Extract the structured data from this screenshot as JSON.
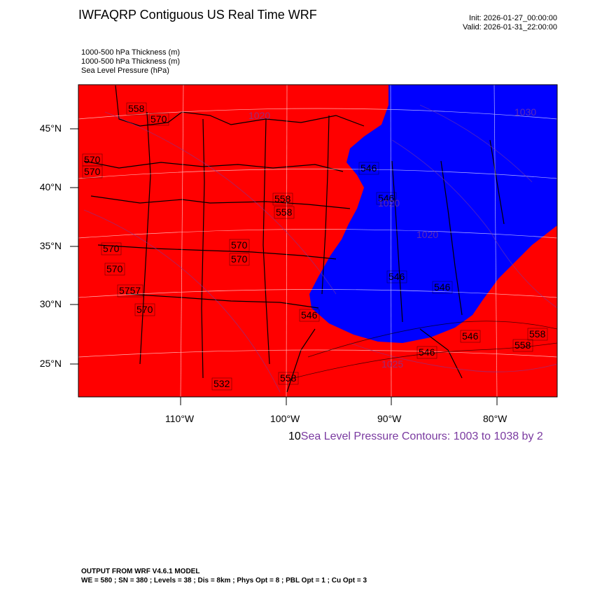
{
  "title": "IWFAQRP Contiguous US Real Time WRF",
  "init": "Init: 2026-01-27_00:00:00",
  "valid": "Valid: 2026-01-31_22:00:00",
  "fields": [
    "1000-500 hPa Thickness   (m)",
    "1000-500 hPa Thickness   (m)",
    "Sea Level Pressure   (hPa)"
  ],
  "lat_labels": [
    "45°N",
    "40°N",
    "35°N",
    "30°N",
    "25°N"
  ],
  "lon_labels": [
    "110°W",
    "100°W",
    "90°W",
    "80°W"
  ],
  "contour_note": {
    "lead": "10",
    "text": "Sea Level Pressure Contours: 1003 to 1038 by 2"
  },
  "thickness_labels": [
    "570",
    "570",
    "570",
    "570",
    "570",
    "570",
    "5757",
    "570",
    "570",
    "558",
    "558",
    "546",
    "546",
    "546",
    "546",
    "546",
    "546",
    "558",
    "558",
    "546",
    "532",
    "558",
    "558"
  ],
  "pressure_labels": [
    "1020",
    "1030",
    "1020",
    "1020",
    "1025"
  ],
  "colors": {
    "warm": "#ff0000",
    "cold": "#0000ff",
    "borders": "#000000",
    "grid": "#ffffff",
    "pressure": "#7a3aa0"
  },
  "footer": {
    "line1": "OUTPUT FROM WRF V4.6.1 MODEL",
    "line2": "WE = 580 ; SN = 380 ; Levels = 38 ; Dis = 8km ; Phys Opt = 8 ; PBL Opt = 1 ; Cu Opt = 3"
  }
}
